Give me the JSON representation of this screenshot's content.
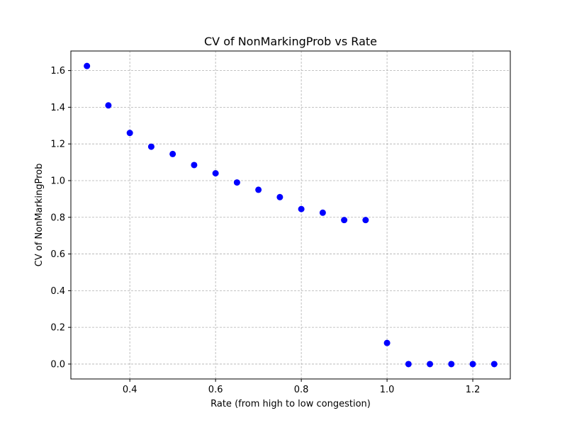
{
  "chart_data": {
    "type": "scatter",
    "title": "CV of NonMarkingProb vs Rate",
    "xlabel": "Rate (from high to low congestion)",
    "ylabel": "CV of NonMarkingProb",
    "xlim": [
      0.2625,
      1.2875
    ],
    "ylim": [
      -0.0813,
      1.7066
    ],
    "xticks": [
      0.4,
      0.6,
      0.8,
      1.0,
      1.2
    ],
    "xtick_labels": [
      "0.4",
      "0.6",
      "0.8",
      "1.0",
      "1.2"
    ],
    "yticks": [
      0.0,
      0.2,
      0.4,
      0.6,
      0.8,
      1.0,
      1.2,
      1.4,
      1.6
    ],
    "ytick_labels": [
      "0.0",
      "0.2",
      "0.4",
      "0.6",
      "0.8",
      "1.0",
      "1.2",
      "1.4",
      "1.6"
    ],
    "grid": true,
    "marker_color": "#0000ff",
    "x": [
      0.3,
      0.35,
      0.4,
      0.45,
      0.5,
      0.55,
      0.6,
      0.65,
      0.7,
      0.75,
      0.8,
      0.85,
      0.9,
      0.95,
      1.0,
      1.05,
      1.1,
      1.15,
      1.2,
      1.25
    ],
    "y": [
      1.625,
      1.41,
      1.26,
      1.185,
      1.145,
      1.085,
      1.04,
      0.99,
      0.95,
      0.91,
      0.845,
      0.825,
      0.785,
      0.785,
      0.115,
      0.0,
      0.0,
      0.0,
      0.0,
      0.0
    ]
  }
}
